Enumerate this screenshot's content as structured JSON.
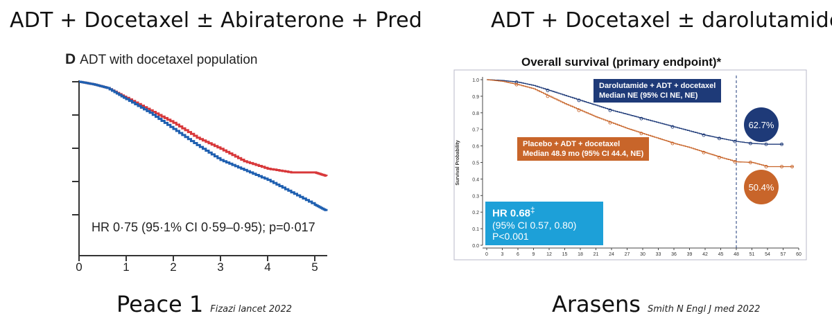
{
  "left": {
    "title": "ADT + Docetaxel ± Abiraterone + Pred",
    "panel_letter": "D",
    "panel_title": "ADT with docetaxel population",
    "hr_text": "HR 0·75 (95·1% CI 0·59–0·95); p=0·017",
    "footer_main": "Peace 1",
    "footer_cite": "Fizazi lancet 2022"
  },
  "right": {
    "title": "ADT + Docetaxel ± darolutamide",
    "chart_title": "Overall survival (primary endpoint)*",
    "ylabel": "Survival Probability",
    "blue_label_line1": "Darolutamide + ADT + docetaxel",
    "blue_label_line2": "Median NE (95% CI NE, NE)",
    "orange_label_line1": "Placebo + ADT + docetaxel",
    "orange_label_line2": "Median 48.9 mo (95% CI 44.4, NE)",
    "blue_pct": "62.7%",
    "orange_pct": "50.4%",
    "hr_label": "HR 0.68",
    "hr_mark": "‡",
    "hr_ci": "(95% CI 0.57, 0.80)",
    "hr_p": "P<0.001",
    "footer_main": "Arasens",
    "footer_cite": "Smith N Engl J med 2022"
  },
  "colors": {
    "blue": "#1e3a78",
    "orange": "#c8652a",
    "red": "#d8383a",
    "lightblue": "#1da0d8"
  },
  "chart_data": [
    {
      "type": "line",
      "title": "ADT with docetaxel population",
      "xlabel": "",
      "ylabel": "",
      "xticks": [
        0,
        1,
        2,
        3,
        4,
        5
      ],
      "xlim": [
        0,
        5.5
      ],
      "ylim": [
        0.3,
        1.0
      ],
      "series": [
        {
          "color": "#d8383a",
          "x": [
            0,
            0.3,
            0.6,
            1.0,
            1.5,
            2.0,
            2.5,
            3.0,
            3.5,
            4.0,
            4.5,
            5.0,
            5.25
          ],
          "y": [
            1.0,
            0.99,
            0.975,
            0.935,
            0.885,
            0.835,
            0.775,
            0.73,
            0.68,
            0.65,
            0.635,
            0.635,
            0.62
          ]
        },
        {
          "color": "#1e5fb0",
          "x": [
            0,
            0.3,
            0.6,
            1.0,
            1.5,
            2.0,
            2.5,
            3.0,
            3.5,
            4.0,
            4.5,
            5.0,
            5.25
          ],
          "y": [
            1.0,
            0.99,
            0.975,
            0.93,
            0.875,
            0.81,
            0.745,
            0.685,
            0.645,
            0.605,
            0.555,
            0.505,
            0.48
          ]
        }
      ]
    },
    {
      "type": "line",
      "title": "Overall survival (primary endpoint)*",
      "xlabel": "",
      "ylabel": "Survival Probability",
      "xticks": [
        0,
        3,
        6,
        9,
        12,
        15,
        18,
        21,
        24,
        27,
        30,
        33,
        36,
        39,
        42,
        45,
        48,
        51,
        54,
        57,
        60
      ],
      "yticks": [
        0.0,
        0.1,
        0.2,
        0.3,
        0.4,
        0.5,
        0.6,
        0.7,
        0.8,
        0.9,
        1.0
      ],
      "xlim": [
        0,
        60
      ],
      "ylim": [
        0,
        1.0
      ],
      "reference_line_x": 48,
      "series": [
        {
          "name": "Darolutamide + ADT + docetaxel",
          "color": "#1e3a78",
          "x": [
            0,
            3,
            6,
            9,
            12,
            15,
            18,
            21,
            24,
            27,
            30,
            33,
            36,
            39,
            42,
            45,
            48,
            51,
            54,
            57
          ],
          "y": [
            1.0,
            0.995,
            0.985,
            0.965,
            0.935,
            0.905,
            0.875,
            0.845,
            0.815,
            0.79,
            0.765,
            0.74,
            0.715,
            0.69,
            0.665,
            0.645,
            0.627,
            0.615,
            0.61,
            0.61
          ]
        },
        {
          "name": "Placebo + ADT + docetaxel",
          "color": "#c8652a",
          "x": [
            0,
            3,
            6,
            9,
            12,
            15,
            18,
            21,
            24,
            27,
            30,
            33,
            36,
            39,
            42,
            45,
            48,
            51,
            54,
            57,
            59
          ],
          "y": [
            1.0,
            0.99,
            0.97,
            0.945,
            0.9,
            0.855,
            0.815,
            0.775,
            0.74,
            0.705,
            0.675,
            0.645,
            0.615,
            0.59,
            0.56,
            0.53,
            0.504,
            0.5,
            0.475,
            0.475,
            0.475
          ]
        }
      ]
    }
  ]
}
